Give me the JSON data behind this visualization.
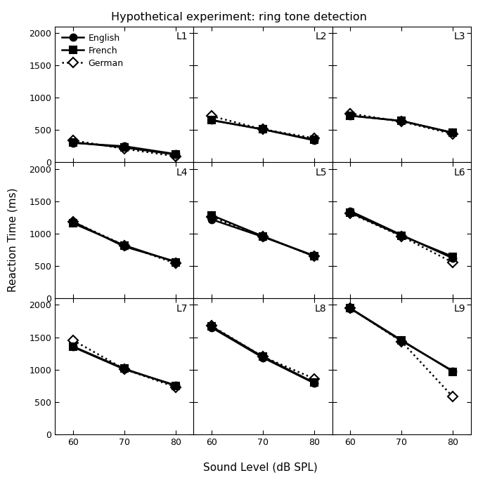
{
  "title": "Hypothetical experiment: ring tone detection",
  "xlabel": "Sound Level (dB SPL)",
  "ylabel": "Reaction Time (ms)",
  "x_ticks": [
    60,
    70,
    80
  ],
  "ylim": [
    0,
    2100
  ],
  "yticks": [
    0,
    500,
    1000,
    1500,
    2000
  ],
  "subplots": [
    {
      "label": "L1",
      "English": [
        300,
        250,
        130
      ],
      "French": [
        310,
        230,
        120
      ],
      "German": [
        340,
        210,
        95
      ]
    },
    {
      "label": "L2",
      "English": [
        650,
        510,
        340
      ],
      "French": [
        655,
        510,
        350
      ],
      "German": [
        715,
        510,
        375
      ]
    },
    {
      "label": "L3",
      "English": [
        720,
        640,
        455
      ],
      "French": [
        722,
        642,
        460
      ],
      "German": [
        755,
        630,
        440
      ]
    },
    {
      "label": "L4",
      "English": [
        1185,
        800,
        570
      ],
      "French": [
        1160,
        820,
        560
      ],
      "German": [
        1185,
        820,
        540
      ]
    },
    {
      "label": "L5",
      "English": [
        1220,
        950,
        660
      ],
      "French": [
        1285,
        960,
        650
      ],
      "German": [
        1255,
        960,
        650
      ]
    },
    {
      "label": "L6",
      "English": [
        1350,
        980,
        620
      ],
      "French": [
        1325,
        970,
        645
      ],
      "German": [
        1315,
        960,
        555
      ]
    },
    {
      "label": "L7",
      "English": [
        1350,
        1005,
        760
      ],
      "French": [
        1360,
        1015,
        750
      ],
      "German": [
        1455,
        1010,
        730
      ]
    },
    {
      "label": "L8",
      "English": [
        1650,
        1185,
        790
      ],
      "French": [
        1665,
        1200,
        800
      ],
      "German": [
        1675,
        1200,
        860
      ]
    },
    {
      "label": "L9",
      "English": [
        1945,
        1445,
        980
      ],
      "French": [
        1950,
        1455,
        970
      ],
      "German": [
        1950,
        1435,
        580
      ]
    }
  ],
  "linestyles": {
    "English": "solid",
    "French": "solid",
    "German": "dotted"
  },
  "markers": {
    "English": "o",
    "French": "s",
    "German": "D"
  },
  "markerfacecolor": {
    "English": "black",
    "French": "black",
    "German": "white"
  },
  "markersize": 7,
  "linewidth": 1.8,
  "markeredgewidth": 1.5
}
